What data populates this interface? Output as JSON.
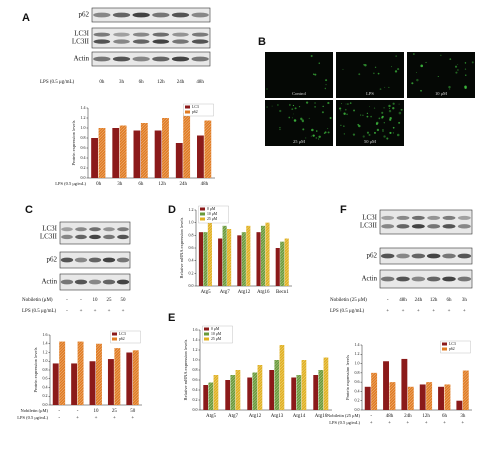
{
  "figure": {
    "letters": [
      "A",
      "B",
      "C",
      "D",
      "E",
      "F"
    ],
    "blots": [
      {
        "rows": [
          "p62",
          "LC3I",
          "LC3II",
          "Actin"
        ],
        "conditions": [
          {
            "label": "LPS (0.5 μg/mL)",
            "values": [
              "0h",
              "3h",
              "6h",
              "12h",
              "24h",
              "48h"
            ]
          }
        ]
      },
      {
        "rows": [
          "LC3I",
          "LC3II",
          "p62",
          "Actin"
        ],
        "conditions": [
          {
            "label": "Nobiletin (μM)",
            "values": [
              "-",
              "-",
              "10",
              "25",
              "50"
            ]
          },
          {
            "label": "LPS (0.5 μg/mL)",
            "values": [
              "-",
              "+",
              "+",
              "+",
              "+"
            ]
          }
        ]
      },
      {
        "rows": [
          "LC3I",
          "LC3II",
          "p62",
          "Actin"
        ],
        "conditions": [
          {
            "label": "Nobiletin (25 μM)",
            "values": [
              "-",
              "48h",
              "24h",
              "12h",
              "6h",
              "3h"
            ]
          },
          {
            "label": "LPS (0.5 μg/mL)",
            "values": [
              "+",
              "+",
              "+",
              "+",
              "+",
              "+"
            ]
          }
        ]
      }
    ],
    "micrographs": [
      "Control",
      "LPS",
      "10 μM",
      "25 μM",
      "50 μM"
    ]
  },
  "chart_data": [
    {
      "type": "bar",
      "ylabel": "Protein expression levels",
      "xlabel": "LPS (0.5 μg/mL)",
      "categories": [
        "0h",
        "3h",
        "6h",
        "12h",
        "24h",
        "48h"
      ],
      "series": [
        {
          "name": "LC3",
          "color": "#8b1a1a",
          "hatch": false,
          "values": [
            0.8,
            1.0,
            0.95,
            0.95,
            0.7,
            0.85
          ]
        },
        {
          "name": "p62",
          "color": "#e07b22",
          "hatch": true,
          "values": [
            1.0,
            1.05,
            1.1,
            1.2,
            1.3,
            1.15
          ]
        }
      ],
      "ylim": [
        0,
        1.4
      ],
      "yticks": [
        {
          "value": 0,
          "label": "0.0"
        },
        0.2,
        0.4,
        0.6,
        0.8,
        {
          "value": 1,
          "label": "1.0"
        },
        1.2,
        1.4
      ],
      "legend": "upper right"
    },
    {
      "type": "bar",
      "ylabel": "Protein expression levels",
      "xlabel": "Nobiletin (μM)",
      "xlabel2": "LPS (0.5 μg/mL)",
      "categories": [
        "-",
        "-",
        "10",
        "25",
        "50"
      ],
      "categories2": [
        "-",
        "+",
        "+",
        "+",
        "+"
      ],
      "series": [
        {
          "name": "LC3",
          "color": "#8b1a1a",
          "hatch": false,
          "values": [
            0.95,
            0.95,
            1.0,
            1.05,
            1.2
          ]
        },
        {
          "name": "p62",
          "color": "#e07b22",
          "hatch": true,
          "values": [
            1.45,
            1.45,
            1.4,
            1.3,
            1.25
          ]
        }
      ],
      "ylim": [
        0,
        1.6
      ],
      "yticks": [
        {
          "value": 0,
          "label": "0.0"
        },
        0.2,
        0.4,
        0.6,
        0.8,
        {
          "value": 1,
          "label": "1.0"
        },
        1.2,
        1.4,
        1.6
      ],
      "legend": "upper right"
    },
    {
      "type": "bar",
      "ylabel": "Relative mRNA expression levels",
      "categories": [
        "Atg5",
        "Atg7",
        "Atg12",
        "Atg16",
        "Becn1"
      ],
      "series": [
        {
          "name": "0 μM",
          "color": "#8b1a1a",
          "hatch": false,
          "values": [
            0.85,
            0.75,
            0.8,
            0.85,
            0.6
          ]
        },
        {
          "name": "10 μM",
          "color": "#6a9a3a",
          "hatch": true,
          "values": [
            0.85,
            0.95,
            0.85,
            0.95,
            0.7
          ]
        },
        {
          "name": "25 μM",
          "color": "#e0b020",
          "hatch": true,
          "values": [
            1.0,
            0.9,
            0.95,
            1.0,
            0.75
          ]
        }
      ],
      "ylim": [
        0,
        1.2
      ],
      "yticks": [
        {
          "value": 0,
          "label": "0.0"
        },
        0.2,
        0.4,
        0.6,
        0.8,
        {
          "value": 1,
          "label": "1.0"
        },
        1.2
      ],
      "legend": "upper left"
    },
    {
      "type": "bar",
      "ylabel": "Relative mRNA expression levels",
      "categories": [
        "Atg5",
        "Atg7",
        "Atg12",
        "Atg13",
        "Atg14",
        "Atg16"
      ],
      "series": [
        {
          "name": "0 μM",
          "color": "#8b1a1a",
          "hatch": false,
          "values": [
            0.5,
            0.6,
            0.65,
            0.8,
            0.65,
            0.7
          ]
        },
        {
          "name": "10 μM",
          "color": "#6a9a3a",
          "hatch": true,
          "values": [
            0.55,
            0.7,
            0.75,
            1.0,
            0.7,
            0.8
          ]
        },
        {
          "name": "25 μM",
          "color": "#e0b020",
          "hatch": true,
          "values": [
            0.7,
            0.8,
            0.9,
            1.3,
            1.0,
            1.05
          ]
        }
      ],
      "ylim": [
        0,
        1.6
      ],
      "yticks": [
        {
          "value": 0,
          "label": "0.0"
        },
        0.2,
        0.4,
        0.6,
        0.8,
        {
          "value": 1,
          "label": "1.0"
        },
        1.2,
        1.4,
        1.6
      ],
      "legend": "upper left"
    },
    {
      "type": "bar",
      "ylabel": "Protein expression levels",
      "xlabel": "Nobiletin (25 μM)",
      "xlabel2": "LPS (0.5 μg/mL)",
      "categories": [
        "-",
        "48h",
        "24h",
        "12h",
        "6h",
        "3h"
      ],
      "categories2": [
        "+",
        "+",
        "+",
        "+",
        "+",
        "+"
      ],
      "series": [
        {
          "name": "LC3",
          "color": "#8b1a1a",
          "hatch": false,
          "values": [
            0.5,
            1.05,
            1.1,
            0.55,
            0.5,
            0.2
          ]
        },
        {
          "name": "p62",
          "color": "#e07b22",
          "hatch": true,
          "values": [
            0.8,
            0.6,
            0.5,
            0.6,
            0.55,
            0.85
          ]
        }
      ],
      "ylim": [
        0,
        1.4
      ],
      "yticks": [
        {
          "value": 0,
          "label": "0.0"
        },
        0.2,
        0.4,
        0.6,
        0.8,
        {
          "value": 1,
          "label": "1.0"
        },
        1.2,
        1.4
      ],
      "legend": "upper right"
    }
  ]
}
